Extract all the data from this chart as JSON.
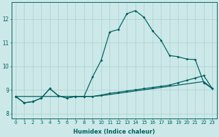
{
  "xlabel": "Humidex (Indice chaleur)",
  "bg_color": "#cce8e8",
  "grid_color": "#aad0d0",
  "line_color": "#006060",
  "xlim": [
    -0.5,
    23.5
  ],
  "ylim": [
    7.8,
    12.7
  ],
  "yticks": [
    8,
    9,
    10,
    11,
    12
  ],
  "xticks": [
    0,
    1,
    2,
    3,
    4,
    5,
    6,
    7,
    8,
    9,
    10,
    11,
    12,
    13,
    14,
    15,
    16,
    17,
    18,
    19,
    20,
    21,
    22,
    23
  ],
  "series1_x": [
    0,
    1,
    2,
    3,
    4,
    5,
    6,
    7,
    8,
    9,
    10,
    11,
    12,
    13,
    14,
    15,
    16,
    17,
    18,
    19,
    20,
    21,
    22,
    23
  ],
  "series1_y": [
    8.72,
    8.72,
    8.72,
    8.72,
    8.72,
    8.72,
    8.72,
    8.72,
    8.72,
    8.72,
    8.75,
    8.8,
    8.85,
    8.9,
    8.95,
    9.0,
    9.05,
    9.1,
    9.15,
    9.2,
    9.25,
    9.3,
    9.35,
    9.05
  ],
  "series2_x": [
    0,
    1,
    2,
    3,
    4,
    5,
    6,
    7,
    8,
    9,
    10,
    11,
    12,
    13,
    14,
    15,
    16,
    17,
    18,
    19,
    20,
    21,
    22,
    23
  ],
  "series2_y": [
    8.72,
    8.45,
    8.5,
    8.65,
    9.05,
    8.75,
    8.65,
    8.72,
    8.72,
    8.72,
    8.78,
    8.85,
    8.9,
    8.95,
    9.0,
    9.05,
    9.1,
    9.15,
    9.2,
    9.3,
    9.4,
    9.5,
    9.6,
    9.05
  ],
  "series3_x": [
    0,
    1,
    2,
    3,
    4,
    5,
    6,
    7,
    8,
    9,
    10,
    11,
    12,
    13,
    14,
    15,
    16,
    17,
    18,
    19,
    20,
    21,
    22,
    23
  ],
  "series3_y": [
    8.72,
    8.45,
    8.5,
    8.65,
    9.05,
    8.75,
    8.65,
    8.72,
    8.72,
    9.55,
    10.25,
    11.45,
    11.55,
    12.22,
    12.35,
    12.07,
    11.5,
    11.1,
    10.45,
    10.4,
    10.3,
    10.28,
    9.3,
    9.05
  ]
}
